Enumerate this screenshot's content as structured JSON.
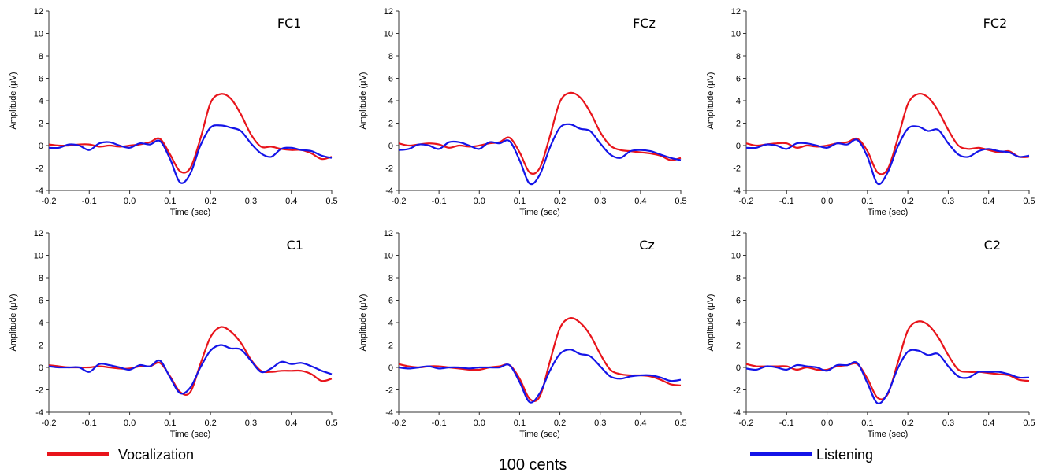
{
  "chart_data": [
    {
      "type": "line",
      "title": "FC1",
      "xlabel": "Time (sec)",
      "ylabel": "Amplitude (μV)",
      "xlim": [
        -0.2,
        0.5
      ],
      "ylim": [
        -4,
        12
      ],
      "xticks": [
        "-0.2",
        "-0.1",
        "0.0",
        "0.1",
        "0.2",
        "0.3",
        "0.4",
        "0.5"
      ],
      "yticks": [
        "-4",
        "-2",
        "0",
        "2",
        "4",
        "6",
        "8",
        "10",
        "12"
      ],
      "x": [
        -0.2,
        -0.175,
        -0.15,
        -0.125,
        -0.1,
        -0.075,
        -0.05,
        -0.025,
        0.0,
        0.025,
        0.05,
        0.075,
        0.1,
        0.125,
        0.15,
        0.175,
        0.2,
        0.225,
        0.25,
        0.275,
        0.3,
        0.325,
        0.35,
        0.375,
        0.4,
        0.425,
        0.45,
        0.475,
        0.5
      ],
      "series": [
        {
          "name": "Vocalization",
          "color": "#e8141b",
          "values": [
            0.1,
            0.0,
            0.0,
            0.1,
            0.1,
            -0.1,
            0.0,
            -0.1,
            0.0,
            0.1,
            0.3,
            0.6,
            -0.8,
            -2.3,
            -2.0,
            0.6,
            3.8,
            4.6,
            4.2,
            2.8,
            1.0,
            -0.1,
            -0.1,
            -0.3,
            -0.4,
            -0.4,
            -0.7,
            -1.2,
            -1.0
          ]
        },
        {
          "name": "Listening",
          "color": "#1414e8",
          "values": [
            -0.2,
            -0.2,
            0.1,
            0.0,
            -0.4,
            0.2,
            0.3,
            0.0,
            -0.2,
            0.2,
            0.1,
            0.4,
            -1.2,
            -3.3,
            -2.5,
            0.0,
            1.6,
            1.8,
            1.6,
            1.3,
            0.2,
            -0.7,
            -1.0,
            -0.3,
            -0.2,
            -0.4,
            -0.5,
            -0.9,
            -1.1
          ]
        }
      ]
    },
    {
      "type": "line",
      "title": "FCz",
      "xlabel": "Time (sec)",
      "ylabel": "Amplitude (μV)",
      "xlim": [
        -0.2,
        0.5
      ],
      "ylim": [
        -4,
        12
      ],
      "xticks": [
        "-0.2",
        "-0.1",
        "0.0",
        "0.1",
        "0.2",
        "0.3",
        "0.4",
        "0.5"
      ],
      "yticks": [
        "-4",
        "-2",
        "0",
        "2",
        "4",
        "6",
        "8",
        "10",
        "12"
      ],
      "x": [
        -0.2,
        -0.175,
        -0.15,
        -0.125,
        -0.1,
        -0.075,
        -0.05,
        -0.025,
        0.0,
        0.025,
        0.05,
        0.075,
        0.1,
        0.125,
        0.15,
        0.175,
        0.2,
        0.225,
        0.25,
        0.275,
        0.3,
        0.325,
        0.35,
        0.375,
        0.4,
        0.425,
        0.45,
        0.475,
        0.5
      ],
      "series": [
        {
          "name": "Vocalization",
          "color": "#e8141b",
          "values": [
            0.2,
            0.0,
            0.1,
            0.2,
            0.1,
            -0.2,
            0.0,
            -0.1,
            0.0,
            0.2,
            0.3,
            0.7,
            -0.6,
            -2.4,
            -2.0,
            0.8,
            3.9,
            4.7,
            4.3,
            3.0,
            1.2,
            0.0,
            -0.4,
            -0.5,
            -0.6,
            -0.7,
            -0.9,
            -1.3,
            -1.1
          ]
        },
        {
          "name": "Listening",
          "color": "#1414e8",
          "values": [
            -0.4,
            -0.3,
            0.1,
            0.0,
            -0.3,
            0.3,
            0.3,
            0.0,
            -0.3,
            0.3,
            0.2,
            0.4,
            -1.3,
            -3.4,
            -2.6,
            -0.2,
            1.6,
            1.9,
            1.5,
            1.3,
            0.2,
            -0.8,
            -1.1,
            -0.5,
            -0.4,
            -0.5,
            -0.8,
            -1.1,
            -1.3
          ]
        }
      ]
    },
    {
      "type": "line",
      "title": "FC2",
      "xlabel": "Time (sec)",
      "ylabel": "Amplitude (μV)",
      "xlim": [
        -0.2,
        0.5
      ],
      "ylim": [
        -4,
        12
      ],
      "xticks": [
        "-0.2",
        "-0.1",
        "0.0",
        "0.1",
        "0.2",
        "0.3",
        "0.4",
        "0.5"
      ],
      "yticks": [
        "-4",
        "-2",
        "0",
        "2",
        "4",
        "6",
        "8",
        "10",
        "12"
      ],
      "x": [
        -0.2,
        -0.175,
        -0.15,
        -0.125,
        -0.1,
        -0.075,
        -0.05,
        -0.025,
        0.0,
        0.025,
        0.05,
        0.075,
        0.1,
        0.125,
        0.15,
        0.175,
        0.2,
        0.225,
        0.25,
        0.275,
        0.3,
        0.325,
        0.35,
        0.375,
        0.4,
        0.425,
        0.45,
        0.475,
        0.5
      ],
      "series": [
        {
          "name": "Vocalization",
          "color": "#e8141b",
          "values": [
            0.2,
            0.0,
            0.1,
            0.2,
            0.2,
            -0.2,
            0.0,
            -0.1,
            0.0,
            0.2,
            0.3,
            0.6,
            -0.5,
            -2.4,
            -2.1,
            0.6,
            3.7,
            4.6,
            4.3,
            3.1,
            1.4,
            0.0,
            -0.3,
            -0.2,
            -0.4,
            -0.6,
            -0.5,
            -1.0,
            -1.0
          ]
        },
        {
          "name": "Listening",
          "color": "#1414e8",
          "values": [
            -0.2,
            -0.2,
            0.1,
            0.0,
            -0.3,
            0.2,
            0.2,
            0.0,
            -0.2,
            0.2,
            0.1,
            0.5,
            -1.0,
            -3.4,
            -2.4,
            -0.1,
            1.5,
            1.7,
            1.3,
            1.4,
            0.2,
            -0.8,
            -1.0,
            -0.5,
            -0.3,
            -0.5,
            -0.6,
            -1.0,
            -0.9
          ]
        }
      ]
    },
    {
      "type": "line",
      "title": "C1",
      "xlabel": "Time (sec)",
      "ylabel": "Amplitude (μV)",
      "xlim": [
        -0.2,
        0.5
      ],
      "ylim": [
        -4,
        12
      ],
      "xticks": [
        "-0.2",
        "-0.1",
        "0.0",
        "0.1",
        "0.2",
        "0.3",
        "0.4",
        "0.5"
      ],
      "yticks": [
        "-4",
        "-2",
        "0",
        "2",
        "4",
        "6",
        "8",
        "10",
        "12"
      ],
      "x": [
        -0.2,
        -0.175,
        -0.15,
        -0.125,
        -0.1,
        -0.075,
        -0.05,
        -0.025,
        0.0,
        0.025,
        0.05,
        0.075,
        0.1,
        0.125,
        0.15,
        0.175,
        0.2,
        0.225,
        0.25,
        0.275,
        0.3,
        0.325,
        0.35,
        0.375,
        0.4,
        0.425,
        0.45,
        0.475,
        0.5
      ],
      "series": [
        {
          "name": "Vocalization",
          "color": "#e8141b",
          "values": [
            0.2,
            0.1,
            0.0,
            0.0,
            0.0,
            0.1,
            0.0,
            -0.1,
            -0.1,
            0.1,
            0.1,
            0.4,
            -0.8,
            -2.2,
            -2.2,
            0.3,
            2.7,
            3.6,
            3.2,
            2.2,
            0.7,
            -0.3,
            -0.4,
            -0.3,
            -0.3,
            -0.3,
            -0.6,
            -1.2,
            -1.0
          ]
        },
        {
          "name": "Listening",
          "color": "#1414e8",
          "values": [
            0.1,
            0.0,
            0.0,
            0.0,
            -0.4,
            0.3,
            0.2,
            0.0,
            -0.2,
            0.2,
            0.1,
            0.6,
            -0.9,
            -2.3,
            -1.8,
            0.0,
            1.5,
            2.0,
            1.7,
            1.6,
            0.6,
            -0.4,
            -0.1,
            0.5,
            0.3,
            0.4,
            0.1,
            -0.3,
            -0.6
          ]
        }
      ]
    },
    {
      "type": "line",
      "title": "Cz",
      "xlabel": "Time (sec)",
      "ylabel": "Amplitude (μV)",
      "xlim": [
        -0.2,
        0.5
      ],
      "ylim": [
        -4,
        12
      ],
      "xticks": [
        "-0.2",
        "-0.1",
        "0.0",
        "0.1",
        "0.2",
        "0.3",
        "0.4",
        "0.5"
      ],
      "yticks": [
        "-4",
        "-2",
        "0",
        "2",
        "4",
        "6",
        "8",
        "10",
        "12"
      ],
      "x": [
        -0.2,
        -0.175,
        -0.15,
        -0.125,
        -0.1,
        -0.075,
        -0.05,
        -0.025,
        0.0,
        0.025,
        0.05,
        0.075,
        0.1,
        0.125,
        0.15,
        0.175,
        0.2,
        0.225,
        0.25,
        0.275,
        0.3,
        0.325,
        0.35,
        0.375,
        0.4,
        0.425,
        0.45,
        0.475,
        0.5
      ],
      "series": [
        {
          "name": "Vocalization",
          "color": "#e8141b",
          "values": [
            0.3,
            0.1,
            0.0,
            0.1,
            0.1,
            0.0,
            -0.1,
            -0.2,
            -0.2,
            0.0,
            0.1,
            0.2,
            -1.0,
            -2.8,
            -2.6,
            0.5,
            3.5,
            4.4,
            4.0,
            2.9,
            1.2,
            -0.2,
            -0.6,
            -0.7,
            -0.7,
            -0.8,
            -1.1,
            -1.5,
            -1.6
          ]
        },
        {
          "name": "Listening",
          "color": "#1414e8",
          "values": [
            0.0,
            -0.1,
            0.0,
            0.1,
            -0.1,
            0.0,
            0.0,
            -0.1,
            0.0,
            0.0,
            0.0,
            0.2,
            -1.3,
            -3.1,
            -2.3,
            -0.3,
            1.2,
            1.6,
            1.2,
            1.0,
            0.1,
            -0.8,
            -1.0,
            -0.8,
            -0.7,
            -0.7,
            -0.9,
            -1.2,
            -1.1
          ]
        }
      ]
    },
    {
      "type": "line",
      "title": "C2",
      "xlabel": "Time (sec)",
      "ylabel": "Amplitude (μV)",
      "xlim": [
        -0.2,
        0.5
      ],
      "ylim": [
        -4,
        12
      ],
      "xticks": [
        "-0.2",
        "-0.1",
        "0.0",
        "0.1",
        "0.2",
        "0.3",
        "0.4",
        "0.5"
      ],
      "yticks": [
        "-4",
        "-2",
        "0",
        "2",
        "4",
        "6",
        "8",
        "10",
        "12"
      ],
      "x": [
        -0.2,
        -0.175,
        -0.15,
        -0.125,
        -0.1,
        -0.075,
        -0.05,
        -0.025,
        0.0,
        0.025,
        0.05,
        0.075,
        0.1,
        0.125,
        0.15,
        0.175,
        0.2,
        0.225,
        0.25,
        0.275,
        0.3,
        0.325,
        0.35,
        0.375,
        0.4,
        0.425,
        0.45,
        0.475,
        0.5
      ],
      "series": [
        {
          "name": "Vocalization",
          "color": "#e8141b",
          "values": [
            0.3,
            0.1,
            0.1,
            0.1,
            0.1,
            -0.2,
            0.0,
            -0.2,
            -0.2,
            0.1,
            0.2,
            0.3,
            -1.0,
            -2.7,
            -2.4,
            0.4,
            3.3,
            4.1,
            3.8,
            2.7,
            1.1,
            -0.2,
            -0.4,
            -0.4,
            -0.5,
            -0.6,
            -0.7,
            -1.1,
            -1.2
          ]
        },
        {
          "name": "Listening",
          "color": "#1414e8",
          "values": [
            -0.1,
            -0.2,
            0.1,
            0.0,
            -0.2,
            0.2,
            0.1,
            0.0,
            -0.3,
            0.2,
            0.2,
            0.4,
            -1.4,
            -3.2,
            -2.3,
            -0.1,
            1.4,
            1.5,
            1.1,
            1.2,
            0.1,
            -0.8,
            -0.9,
            -0.4,
            -0.4,
            -0.4,
            -0.6,
            -0.9,
            -0.9
          ]
        }
      ]
    }
  ],
  "legend": {
    "vocalization_label": "Vocalization",
    "vocalization_color": "#e8141b",
    "listening_label": "Listening",
    "listening_color": "#1414e8"
  },
  "footer": {
    "label": "100 cents"
  }
}
